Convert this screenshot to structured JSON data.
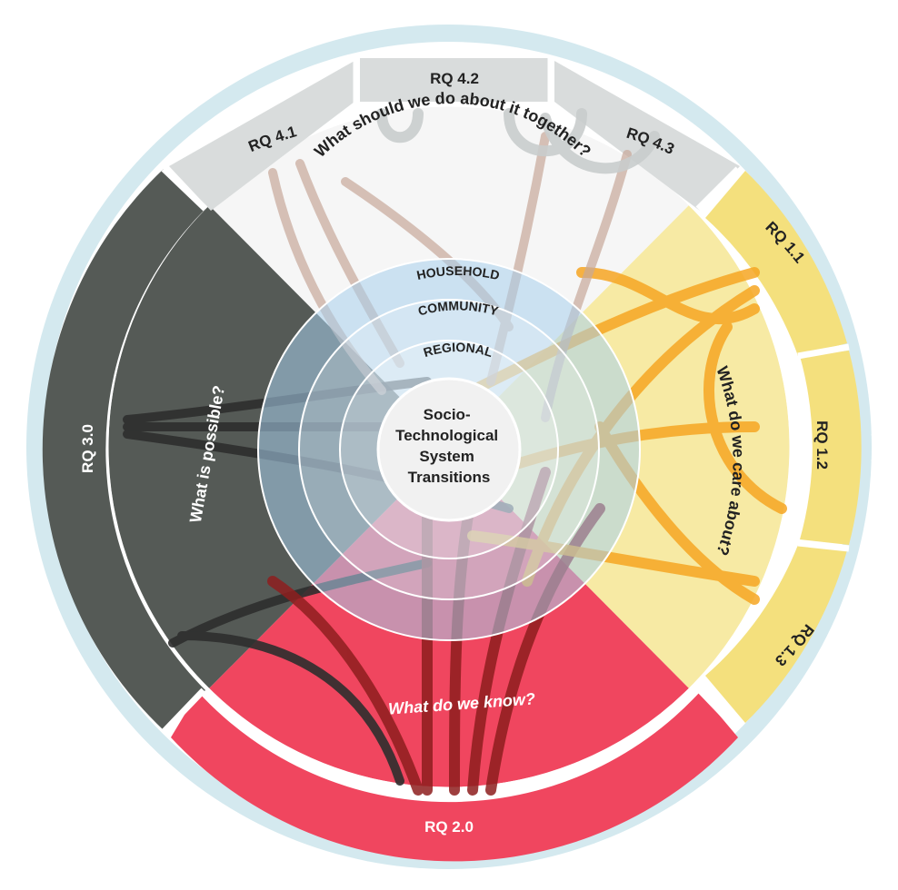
{
  "center": {
    "lines": [
      "Socio-",
      "Technological",
      "System",
      "Transitions"
    ]
  },
  "rings": [
    "HOUSEHOLD",
    "COMMUNITY",
    "REGIONAL"
  ],
  "quadrants": {
    "top": {
      "question": "What should we do about it together?"
    },
    "right": {
      "question": "What do we care about?"
    },
    "bottom": {
      "question": "What do we know?"
    },
    "left": {
      "question": "What is possible?"
    }
  },
  "segments": {
    "rq41": "RQ 4.1",
    "rq42": "RQ 4.2",
    "rq43": "RQ 4.3",
    "rq11": "RQ 1.1",
    "rq12": "RQ 1.2",
    "rq13": "RQ 1.3",
    "rq20": "RQ 2.0",
    "rq30": "RQ 3.0"
  },
  "colors": {
    "outer_ring": "#d4e9ef",
    "top": "#d9dcdc",
    "top_fill": "#f6f6f6",
    "right": "#f4e07d",
    "right_fill": "#f7eaa4",
    "right_chord": "#f6a623",
    "bottom": "#f0465f",
    "bottom_chord": "#8e1e1e",
    "left": "#555a56",
    "left_chord": "#2e2e2e",
    "household": "#a8d0ec",
    "center": "#f1f1f1"
  }
}
